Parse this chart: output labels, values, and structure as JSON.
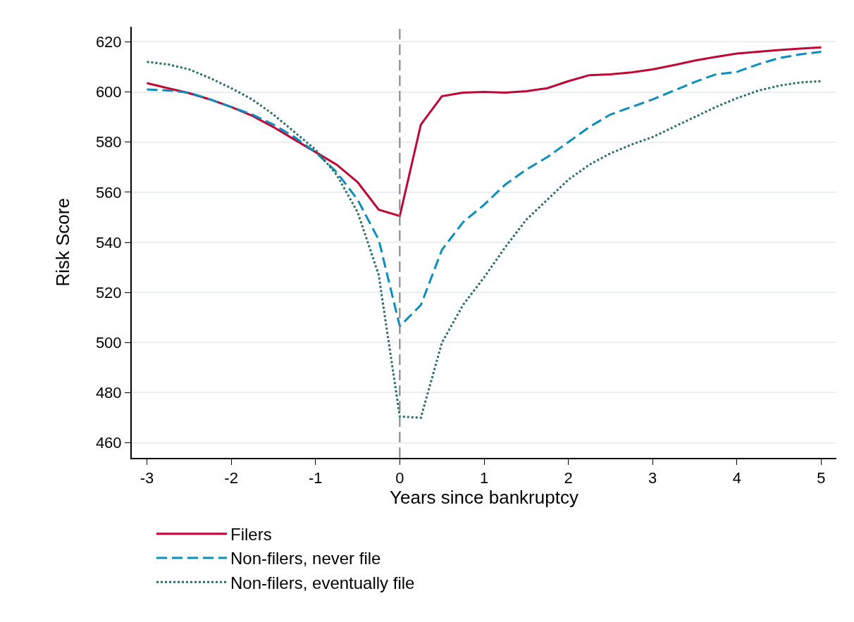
{
  "chart_data": {
    "type": "line",
    "xlabel": "Years since bankruptcy",
    "ylabel": "Risk Score",
    "x": [
      -3,
      -2.75,
      -2.5,
      -2.25,
      -2,
      -1.75,
      -1.5,
      -1.25,
      -1,
      -0.75,
      -0.5,
      -0.25,
      0,
      0.25,
      0.5,
      0.75,
      1,
      1.25,
      1.5,
      1.75,
      2,
      2.25,
      2.5,
      2.75,
      3,
      3.25,
      3.5,
      3.75,
      4,
      4.25,
      4.5,
      4.75,
      5
    ],
    "series": [
      {
        "name": "Filers",
        "color": "#c10534",
        "line_style": "solid",
        "values": [
          603.5,
          601.5,
          599.5,
          597,
          594,
          590.5,
          586,
          581,
          576,
          571,
          564,
          553,
          550.5,
          587,
          598.3,
          599.7,
          600,
          599.7,
          600.3,
          601.5,
          604.3,
          606.7,
          607,
          607.8,
          609,
          610.7,
          612.5,
          614,
          615.3,
          616,
          616.7,
          617.3,
          617.8
        ]
      },
      {
        "name": "Non-filers, never file",
        "color": "#0a8ec0",
        "line_style": "dashed",
        "values": [
          601,
          600.6,
          599.7,
          597,
          594,
          591,
          587,
          582,
          576,
          568,
          557,
          541,
          506.5,
          515,
          537,
          548,
          555,
          563,
          569,
          574,
          580,
          586,
          591,
          594,
          597,
          600.5,
          604,
          607,
          608,
          611,
          613.5,
          615,
          616
        ]
      },
      {
        "name": "Non-filers, eventually file",
        "color": "#2b6e63",
        "line_style": "dotted",
        "values": [
          612,
          611,
          609,
          605.5,
          601.5,
          597,
          591,
          584,
          577,
          567,
          552,
          527,
          470.5,
          470,
          500,
          515,
          526,
          538,
          549,
          557,
          565,
          571,
          575.5,
          579,
          582,
          586,
          590,
          594,
          597.5,
          600.5,
          602.5,
          603.8,
          604.3
        ]
      }
    ],
    "xlim": [
      -3.18,
      5.18
    ],
    "xticks": [
      -3,
      -2,
      -1,
      0,
      1,
      2,
      3,
      4,
      5
    ],
    "ylim": [
      454,
      626
    ],
    "yticks": [
      460,
      480,
      500,
      520,
      540,
      560,
      580,
      600,
      620
    ],
    "ref_lines": [
      {
        "axis": "x",
        "value": 0,
        "color": "#808080",
        "line_style": "dashed"
      }
    ],
    "grid": "y",
    "legend": "bottom",
    "marker": "none"
  }
}
